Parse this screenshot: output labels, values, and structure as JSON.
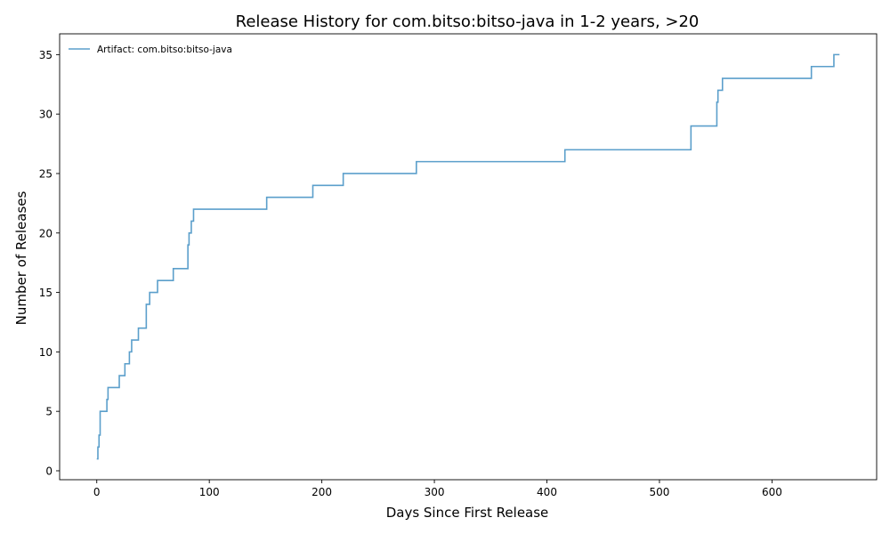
{
  "chart_data": {
    "type": "line",
    "step": "post",
    "title": "Release History for com.bitso:bitso-java in 1-2 years, >20",
    "xlabel": "Days Since First Release",
    "ylabel": "Number of Releases",
    "xlim": [
      -33,
      693
    ],
    "ylim": [
      -0.75,
      36.75
    ],
    "xticks": [
      0,
      100,
      200,
      300,
      400,
      500,
      600
    ],
    "yticks": [
      0,
      5,
      10,
      15,
      20,
      25,
      30,
      35
    ],
    "grid": false,
    "legend_position": "top-left",
    "series": [
      {
        "name": "Artifact: com.bitso:bitso-java",
        "color": "#5b9fcb",
        "x": [
          0,
          1,
          2,
          3,
          9,
          10,
          20,
          25,
          29,
          31,
          37,
          44,
          45,
          47,
          54,
          68,
          81,
          82,
          84,
          85,
          86,
          151,
          192,
          219,
          284,
          416,
          528,
          551,
          552,
          556,
          635,
          655,
          660
        ],
        "y": [
          1,
          2,
          3,
          5,
          6,
          7,
          8,
          9,
          10,
          11,
          12,
          14,
          14,
          15,
          16,
          17,
          19,
          20,
          21,
          21,
          22,
          23,
          24,
          25,
          26,
          27,
          29,
          31,
          32,
          33,
          34,
          35,
          35
        ]
      }
    ]
  }
}
